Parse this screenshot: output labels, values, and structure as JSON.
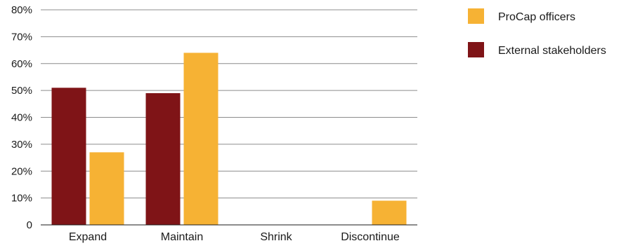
{
  "chart_data": {
    "type": "bar",
    "title": "",
    "xlabel": "",
    "ylabel": "",
    "categories": [
      "Expand",
      "Maintain",
      "Shrink",
      "Discontinue"
    ],
    "series": [
      {
        "name": "External stakeholders",
        "color": "#7f1417",
        "values": [
          51,
          49,
          0,
          0
        ]
      },
      {
        "name": "ProCap officers",
        "color": "#f6b234",
        "values": [
          27,
          64,
          0,
          9
        ]
      }
    ],
    "ylim": [
      0,
      80
    ],
    "yticks": [
      0,
      10,
      20,
      30,
      40,
      50,
      60,
      70,
      80
    ],
    "ytick_labels": [
      "0",
      "10%",
      "20%",
      "30%",
      "40%",
      "50%",
      "60%",
      "70%",
      "80%"
    ],
    "grid": true,
    "legend": {
      "placement": "right",
      "entries": [
        "ProCap officers",
        "External stakeholders"
      ]
    }
  }
}
